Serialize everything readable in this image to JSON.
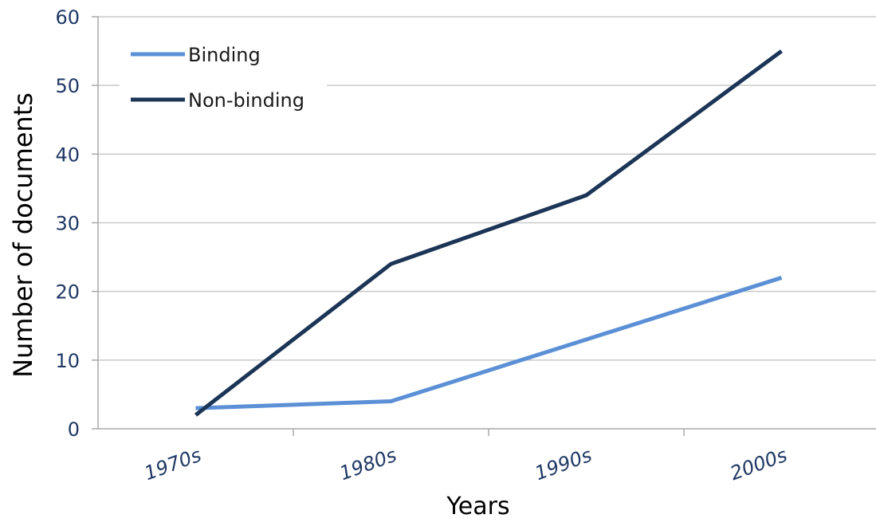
{
  "chart_data": {
    "type": "line",
    "categories": [
      "1970s",
      "1980s",
      "1990s",
      "2000s"
    ],
    "series": [
      {
        "name": "Binding",
        "values": [
          3,
          4,
          13,
          22
        ],
        "color": "#5b8fd6"
      },
      {
        "name": "Non-binding",
        "values": [
          2,
          24,
          34,
          55
        ],
        "color": "#1c3557"
      }
    ],
    "title": "",
    "xlabel": "Years",
    "ylabel": "Number of documents",
    "ylim": [
      0,
      60
    ],
    "yticks": [
      "0",
      "10",
      "20",
      "30",
      "40",
      "50",
      "60"
    ],
    "grid": true,
    "legend": "top-left",
    "text_color": "#1f3864",
    "grid_color": "#c9c9c9"
  }
}
